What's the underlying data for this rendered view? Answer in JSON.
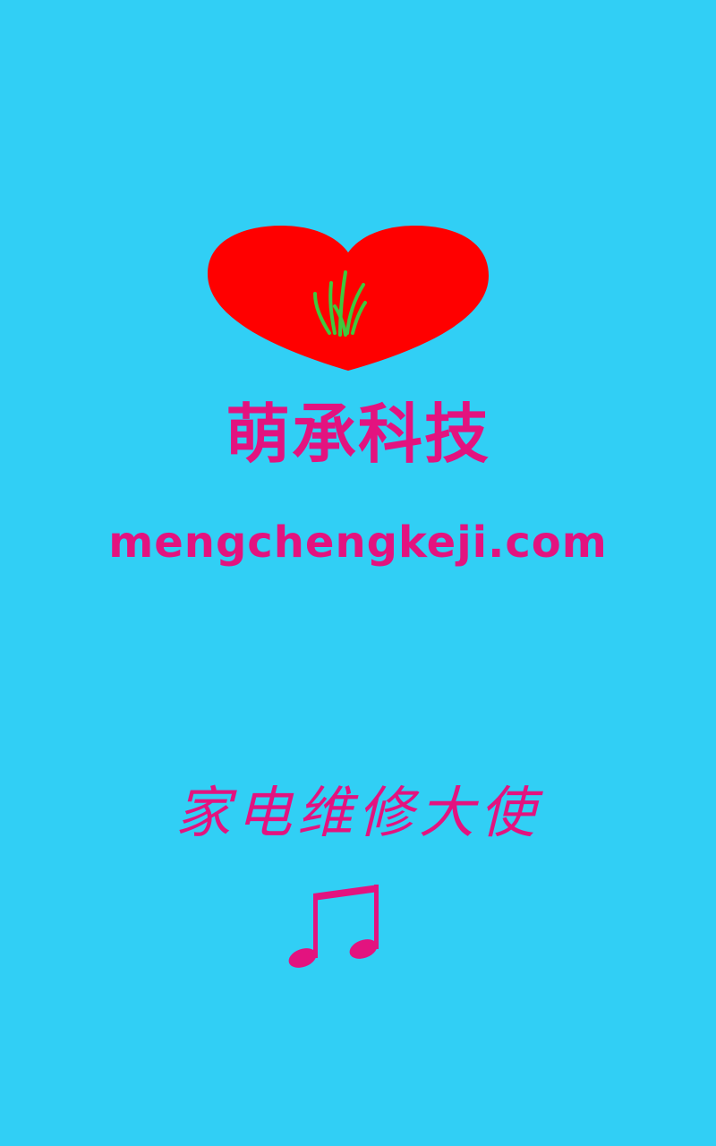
{
  "colors": {
    "background": "#31cff5",
    "heart": "#ff0000",
    "grass": "#3ec93e",
    "text_accent": "#e3137f"
  },
  "splash": {
    "logo_icon": "heart-with-grass-icon",
    "company_name": "萌承科技",
    "website": "mengchengkeji.com",
    "slogan": "家电维修大使",
    "music_icon": "music-note-icon"
  }
}
